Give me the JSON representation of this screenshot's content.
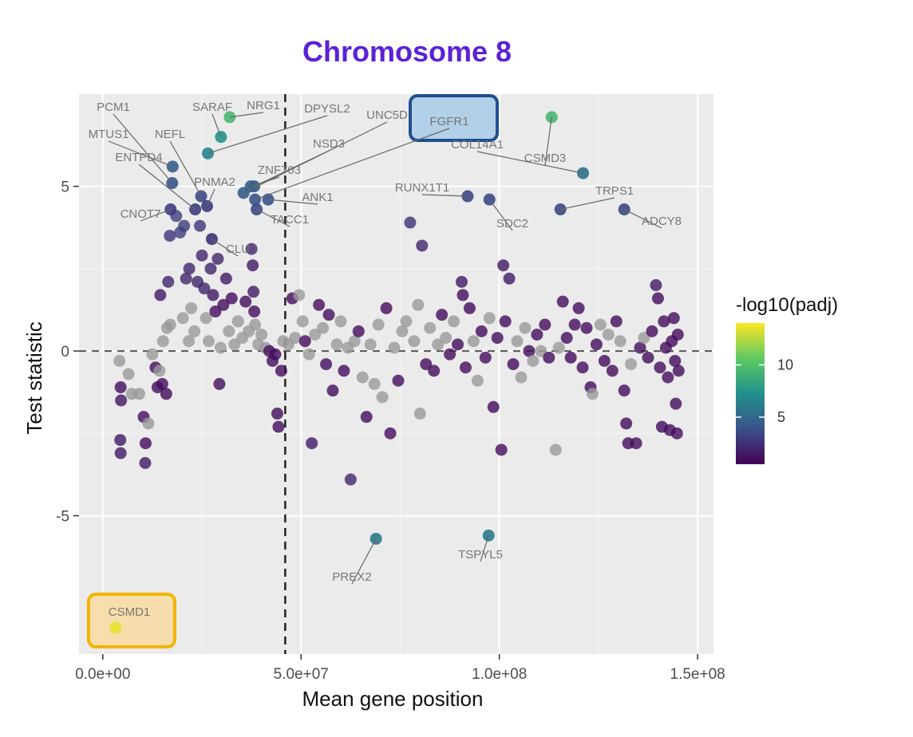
{
  "chart_data": {
    "type": "scatter",
    "title": "Chromosome 8",
    "title_color": "#5b21d6",
    "xlabel": "Mean gene position",
    "ylabel": "Test statistic",
    "xlim": [
      -6000000,
      154000000
    ],
    "ylim": [
      -9.2,
      7.8
    ],
    "x_ticks": [
      0,
      50000000,
      100000000,
      150000000
    ],
    "x_tick_labels": [
      "0.0e+00",
      "5.0e+07",
      "1.0e+08",
      "1.5e+08"
    ],
    "y_ticks": [
      -5,
      0,
      5
    ],
    "y_tick_labels": [
      "-5",
      "0",
      "5"
    ],
    "panel_background": "#ebebeb",
    "grid": true,
    "reference_lines": {
      "y_dashed": 0,
      "x_dashed": 46000000
    },
    "legend": {
      "title": "-log10(padj)",
      "placement": "right",
      "ticks": [
        5,
        10
      ],
      "tick_labels": [
        "5",
        "10"
      ],
      "range": [
        0.5,
        14
      ],
      "colors": [
        "#440154",
        "#3b528b",
        "#21918c",
        "#5ec962",
        "#fde725"
      ]
    },
    "nonsignificant_color": "#9a9a9a",
    "labeled_genes": [
      {
        "gene": "PCM1",
        "x": 17500000,
        "y": 5.1,
        "padj": 4.0
      },
      {
        "gene": "MTUS1",
        "x": 17600000,
        "y": 5.6,
        "padj": 4.5
      },
      {
        "gene": "NEFL",
        "x": 24800000,
        "y": 4.7,
        "padj": 3.5
      },
      {
        "gene": "ENTPD4",
        "x": 23300000,
        "y": 4.3,
        "padj": 3.0
      },
      {
        "gene": "CNOT7",
        "x": 17100000,
        "y": 4.3,
        "padj": 3.0
      },
      {
        "gene": "PNMA2",
        "x": 26300000,
        "y": 4.4,
        "padj": 3.0
      },
      {
        "gene": "CLU",
        "x": 27500000,
        "y": 3.4,
        "padj": 2.5
      },
      {
        "gene": "SARAF",
        "x": 29800000,
        "y": 6.5,
        "padj": 7.5
      },
      {
        "gene": "NRG1",
        "x": 32000000,
        "y": 7.1,
        "padj": 9.5
      },
      {
        "gene": "DPYSL2",
        "x": 26500000,
        "y": 6.0,
        "padj": 6.5
      },
      {
        "gene": "UNC5D",
        "x": 35500000,
        "y": 4.8,
        "padj": 4.5
      },
      {
        "gene": "NSD3",
        "x": 38200000,
        "y": 5.0,
        "padj": 4.5
      },
      {
        "gene": "ZNF703",
        "x": 37300000,
        "y": 5.0,
        "padj": 4.5
      },
      {
        "gene": "FGFR1",
        "x": 38400000,
        "y": 4.6,
        "padj": 4.0
      },
      {
        "gene": "ANK1",
        "x": 41700000,
        "y": 4.6,
        "padj": 4.0
      },
      {
        "gene": "TACC1",
        "x": 38800000,
        "y": 4.3,
        "padj": 3.5
      },
      {
        "gene": "COL14A1",
        "x": 121100000,
        "y": 5.4,
        "padj": 5.5
      },
      {
        "gene": "CSMD3",
        "x": 113200000,
        "y": 7.1,
        "padj": 9.5
      },
      {
        "gene": "RUNX1T1",
        "x": 92000000,
        "y": 4.7,
        "padj": 3.5
      },
      {
        "gene": "SDC2",
        "x": 97500000,
        "y": 4.6,
        "padj": 3.5
      },
      {
        "gene": "TRPS1",
        "x": 115400000,
        "y": 4.3,
        "padj": 3.5
      },
      {
        "gene": "ADCY8",
        "x": 131500000,
        "y": 4.3,
        "padj": 3.5
      },
      {
        "gene": "PREX2",
        "x": 68900000,
        "y": -5.7,
        "padj": 6.0
      },
      {
        "gene": "TSPYL5",
        "x": 97300000,
        "y": -5.6,
        "padj": 6.0
      },
      {
        "gene": "CSMD1",
        "x": 3200000,
        "y": -8.4,
        "padj": 13.5
      }
    ],
    "points": [
      {
        "x": 4200000,
        "y": -0.3,
        "padj": 0
      },
      {
        "x": 4500000,
        "y": -1.1,
        "padj": 1
      },
      {
        "x": 4600000,
        "y": -1.5,
        "padj": 1.2
      },
      {
        "x": 4400000,
        "y": -2.7,
        "padj": 1.5
      },
      {
        "x": 4500000,
        "y": -3.1,
        "padj": 1.5
      },
      {
        "x": 6500000,
        "y": -0.7,
        "padj": 0
      },
      {
        "x": 7300000,
        "y": -1.3,
        "padj": 0
      },
      {
        "x": 9200000,
        "y": -1.3,
        "padj": 0
      },
      {
        "x": 10300000,
        "y": -2.0,
        "padj": 1
      },
      {
        "x": 10800000,
        "y": -2.8,
        "padj": 1
      },
      {
        "x": 10700000,
        "y": -3.4,
        "padj": 1.5
      },
      {
        "x": 11500000,
        "y": -2.2,
        "padj": 0
      },
      {
        "x": 12500000,
        "y": -0.1,
        "padj": 0
      },
      {
        "x": 13300000,
        "y": -0.5,
        "padj": 1
      },
      {
        "x": 13800000,
        "y": -1.1,
        "padj": 1
      },
      {
        "x": 14300000,
        "y": -0.6,
        "padj": 0
      },
      {
        "x": 15000000,
        "y": -1.0,
        "padj": 1
      },
      {
        "x": 16000000,
        "y": -1.3,
        "padj": 1
      },
      {
        "x": 14500000,
        "y": 1.7,
        "padj": 1.5
      },
      {
        "x": 15200000,
        "y": 0.3,
        "padj": 0
      },
      {
        "x": 16200000,
        "y": 0.7,
        "padj": 0
      },
      {
        "x": 17000000,
        "y": 0.8,
        "padj": 0
      },
      {
        "x": 16500000,
        "y": 2.1,
        "padj": 2
      },
      {
        "x": 16900000,
        "y": 3.5,
        "padj": 2.5
      },
      {
        "x": 18500000,
        "y": 4.1,
        "padj": 3
      },
      {
        "x": 19500000,
        "y": 3.6,
        "padj": 3
      },
      {
        "x": 20500000,
        "y": 3.8,
        "padj": 3
      },
      {
        "x": 21800000,
        "y": 2.5,
        "padj": 2
      },
      {
        "x": 21000000,
        "y": 2.2,
        "padj": 2
      },
      {
        "x": 20200000,
        "y": 1.0,
        "padj": 0
      },
      {
        "x": 21700000,
        "y": 0.3,
        "padj": 0
      },
      {
        "x": 22300000,
        "y": 1.3,
        "padj": 0
      },
      {
        "x": 23100000,
        "y": 0.6,
        "padj": 0
      },
      {
        "x": 23900000,
        "y": 2.1,
        "padj": 2
      },
      {
        "x": 24500000,
        "y": 3.8,
        "padj": 2.5
      },
      {
        "x": 25000000,
        "y": 2.9,
        "padj": 2
      },
      {
        "x": 25600000,
        "y": 1.9,
        "padj": 2
      },
      {
        "x": 26000000,
        "y": 1.0,
        "padj": 0
      },
      {
        "x": 26700000,
        "y": 0.3,
        "padj": 0
      },
      {
        "x": 27200000,
        "y": 2.5,
        "padj": 2
      },
      {
        "x": 27800000,
        "y": 1.7,
        "padj": 1.5
      },
      {
        "x": 28400000,
        "y": 1.2,
        "padj": 1
      },
      {
        "x": 29000000,
        "y": 2.8,
        "padj": 2
      },
      {
        "x": 29400000,
        "y": -1.0,
        "padj": 1
      },
      {
        "x": 29700000,
        "y": 0.1,
        "padj": 0
      },
      {
        "x": 30400000,
        "y": 1.4,
        "padj": 1
      },
      {
        "x": 31100000,
        "y": 2.2,
        "padj": 1.5
      },
      {
        "x": 31800000,
        "y": 0.6,
        "padj": 0
      },
      {
        "x": 32500000,
        "y": 1.6,
        "padj": 1
      },
      {
        "x": 33200000,
        "y": 0.2,
        "padj": 0
      },
      {
        "x": 34100000,
        "y": 0.9,
        "padj": 0
      },
      {
        "x": 35200000,
        "y": 0.4,
        "padj": 0
      },
      {
        "x": 36000000,
        "y": 1.5,
        "padj": 1
      },
      {
        "x": 36800000,
        "y": 0.6,
        "padj": 0
      },
      {
        "x": 37500000,
        "y": 3.1,
        "padj": 2
      },
      {
        "x": 37800000,
        "y": 2.6,
        "padj": 1.5
      },
      {
        "x": 38000000,
        "y": 1.8,
        "padj": 1.5
      },
      {
        "x": 38200000,
        "y": 1.2,
        "padj": 1
      },
      {
        "x": 38400000,
        "y": 0.8,
        "padj": 0
      },
      {
        "x": 39200000,
        "y": 0.2,
        "padj": 0
      },
      {
        "x": 40000000,
        "y": 0.5,
        "padj": 0
      },
      {
        "x": 41000000,
        "y": 0.1,
        "padj": 0
      },
      {
        "x": 42000000,
        "y": 0.0,
        "padj": 1
      },
      {
        "x": 42800000,
        "y": -0.3,
        "padj": 1
      },
      {
        "x": 43500000,
        "y": -0.1,
        "padj": 1
      },
      {
        "x": 44000000,
        "y": -1.9,
        "padj": 1
      },
      {
        "x": 44300000,
        "y": -2.3,
        "padj": 1
      },
      {
        "x": 45000000,
        "y": -0.6,
        "padj": 1
      },
      {
        "x": 45500000,
        "y": 0.3,
        "padj": 0
      },
      {
        "x": 46800000,
        "y": 0.2,
        "padj": 0
      },
      {
        "x": 47800000,
        "y": 1.6,
        "padj": 1
      },
      {
        "x": 48500000,
        "y": 0.4,
        "padj": 0
      },
      {
        "x": 49500000,
        "y": 1.7,
        "padj": 0
      },
      {
        "x": 50400000,
        "y": 0.9,
        "padj": 0
      },
      {
        "x": 51000000,
        "y": 0.3,
        "padj": 1
      },
      {
        "x": 52000000,
        "y": -0.1,
        "padj": 0
      },
      {
        "x": 52700000,
        "y": -2.8,
        "padj": 1.5
      },
      {
        "x": 53500000,
        "y": 0.5,
        "padj": 0
      },
      {
        "x": 54500000,
        "y": 1.4,
        "padj": 1
      },
      {
        "x": 55500000,
        "y": 0.7,
        "padj": 0
      },
      {
        "x": 56300000,
        "y": -0.4,
        "padj": 1
      },
      {
        "x": 57000000,
        "y": 1.1,
        "padj": 1
      },
      {
        "x": 58000000,
        "y": -1.2,
        "padj": 1
      },
      {
        "x": 59000000,
        "y": 0.2,
        "padj": 0
      },
      {
        "x": 60000000,
        "y": 0.9,
        "padj": 0
      },
      {
        "x": 60800000,
        "y": -0.6,
        "padj": 1
      },
      {
        "x": 61800000,
        "y": 0.1,
        "padj": 0
      },
      {
        "x": 62500000,
        "y": -3.9,
        "padj": 2
      },
      {
        "x": 63500000,
        "y": 0.3,
        "padj": 0
      },
      {
        "x": 64500000,
        "y": 0.6,
        "padj": 1
      },
      {
        "x": 65500000,
        "y": -0.8,
        "padj": 0
      },
      {
        "x": 66500000,
        "y": -2.0,
        "padj": 1
      },
      {
        "x": 67500000,
        "y": 0.2,
        "padj": 0
      },
      {
        "x": 68500000,
        "y": -1.0,
        "padj": 0
      },
      {
        "x": 69500000,
        "y": 0.8,
        "padj": 0
      },
      {
        "x": 70500000,
        "y": -1.4,
        "padj": 0
      },
      {
        "x": 71500000,
        "y": 1.3,
        "padj": 1
      },
      {
        "x": 72500000,
        "y": -2.5,
        "padj": 1
      },
      {
        "x": 73500000,
        "y": 0.1,
        "padj": 0
      },
      {
        "x": 74500000,
        "y": -0.9,
        "padj": 1
      },
      {
        "x": 75500000,
        "y": 0.6,
        "padj": 0
      },
      {
        "x": 76500000,
        "y": 0.9,
        "padj": 0
      },
      {
        "x": 77500000,
        "y": 3.9,
        "padj": 2.5
      },
      {
        "x": 78500000,
        "y": 0.3,
        "padj": 0
      },
      {
        "x": 79500000,
        "y": 1.4,
        "padj": 0
      },
      {
        "x": 80000000,
        "y": -1.9,
        "padj": 0
      },
      {
        "x": 80500000,
        "y": 3.2,
        "padj": 2
      },
      {
        "x": 81500000,
        "y": -0.4,
        "padj": 1
      },
      {
        "x": 82500000,
        "y": 0.7,
        "padj": 0
      },
      {
        "x": 83500000,
        "y": -0.6,
        "padj": 1
      },
      {
        "x": 84500000,
        "y": 0.2,
        "padj": 0
      },
      {
        "x": 85500000,
        "y": 1.1,
        "padj": 1
      },
      {
        "x": 86500000,
        "y": 0.4,
        "padj": 0
      },
      {
        "x": 87500000,
        "y": -0.1,
        "padj": 1
      },
      {
        "x": 88500000,
        "y": 0.9,
        "padj": 0
      },
      {
        "x": 89500000,
        "y": 0.2,
        "padj": 1
      },
      {
        "x": 90500000,
        "y": 2.1,
        "padj": 1.5
      },
      {
        "x": 90800000,
        "y": 1.7,
        "padj": 1
      },
      {
        "x": 91500000,
        "y": -0.5,
        "padj": 1
      },
      {
        "x": 92500000,
        "y": 1.3,
        "padj": 1
      },
      {
        "x": 93500000,
        "y": 0.3,
        "padj": 0
      },
      {
        "x": 94500000,
        "y": -0.9,
        "padj": 0
      },
      {
        "x": 95500000,
        "y": 0.6,
        "padj": 1
      },
      {
        "x": 96500000,
        "y": -0.2,
        "padj": 1
      },
      {
        "x": 97500000,
        "y": 1.0,
        "padj": 0
      },
      {
        "x": 98500000,
        "y": -1.7,
        "padj": 1
      },
      {
        "x": 99500000,
        "y": 0.4,
        "padj": 1
      },
      {
        "x": 100500000,
        "y": -3.0,
        "padj": 1
      },
      {
        "x": 101000000,
        "y": 2.6,
        "padj": 1.5
      },
      {
        "x": 101500000,
        "y": 0.9,
        "padj": 1
      },
      {
        "x": 102500000,
        "y": 2.2,
        "padj": 1.5
      },
      {
        "x": 103500000,
        "y": -0.4,
        "padj": 1
      },
      {
        "x": 104500000,
        "y": 0.3,
        "padj": 0
      },
      {
        "x": 105500000,
        "y": -0.8,
        "padj": 0
      },
      {
        "x": 106500000,
        "y": 0.7,
        "padj": 0
      },
      {
        "x": 107500000,
        "y": 0.0,
        "padj": 1
      },
      {
        "x": 108500000,
        "y": -0.3,
        "padj": 0
      },
      {
        "x": 109500000,
        "y": 0.5,
        "padj": 1
      },
      {
        "x": 110500000,
        "y": 0.0,
        "padj": 0
      },
      {
        "x": 111500000,
        "y": 0.8,
        "padj": 1
      },
      {
        "x": 112500000,
        "y": -0.2,
        "padj": 1
      },
      {
        "x": 114200000,
        "y": -3.0,
        "padj": 0
      },
      {
        "x": 115000000,
        "y": 0.1,
        "padj": 0
      },
      {
        "x": 116000000,
        "y": 1.5,
        "padj": 1
      },
      {
        "x": 117000000,
        "y": 0.4,
        "padj": 1
      },
      {
        "x": 118000000,
        "y": -0.2,
        "padj": 1
      },
      {
        "x": 119000000,
        "y": 0.8,
        "padj": 1
      },
      {
        "x": 120000000,
        "y": 1.3,
        "padj": 1
      },
      {
        "x": 121000000,
        "y": -0.5,
        "padj": 1
      },
      {
        "x": 122000000,
        "y": 0.7,
        "padj": 1
      },
      {
        "x": 123000000,
        "y": -1.1,
        "padj": 1
      },
      {
        "x": 123500000,
        "y": -1.3,
        "padj": 0
      },
      {
        "x": 124500000,
        "y": 0.2,
        "padj": 1
      },
      {
        "x": 125500000,
        "y": 0.8,
        "padj": 0
      },
      {
        "x": 126500000,
        "y": -0.3,
        "padj": 1
      },
      {
        "x": 127500000,
        "y": 0.5,
        "padj": 0
      },
      {
        "x": 128500000,
        "y": -0.6,
        "padj": 1
      },
      {
        "x": 129500000,
        "y": 0.9,
        "padj": 1
      },
      {
        "x": 130500000,
        "y": 0.3,
        "padj": 0
      },
      {
        "x": 131500000,
        "y": -1.2,
        "padj": 1
      },
      {
        "x": 132000000,
        "y": -2.2,
        "padj": 1
      },
      {
        "x": 132500000,
        "y": -2.8,
        "padj": 1
      },
      {
        "x": 133200000,
        "y": -0.4,
        "padj": 0
      },
      {
        "x": 134500000,
        "y": -2.8,
        "padj": 1
      },
      {
        "x": 135500000,
        "y": 0.1,
        "padj": 1
      },
      {
        "x": 136500000,
        "y": 0.4,
        "padj": 0
      },
      {
        "x": 137500000,
        "y": -0.2,
        "padj": 1
      },
      {
        "x": 138500000,
        "y": 0.6,
        "padj": 1
      },
      {
        "x": 139500000,
        "y": 2.0,
        "padj": 1.5
      },
      {
        "x": 140000000,
        "y": 1.6,
        "padj": 1
      },
      {
        "x": 140500000,
        "y": -0.5,
        "padj": 1
      },
      {
        "x": 141000000,
        "y": -2.3,
        "padj": 1
      },
      {
        "x": 141500000,
        "y": 0.9,
        "padj": 1
      },
      {
        "x": 142000000,
        "y": 0.1,
        "padj": 1
      },
      {
        "x": 142500000,
        "y": -0.8,
        "padj": 1
      },
      {
        "x": 143000000,
        "y": -2.4,
        "padj": 1
      },
      {
        "x": 143500000,
        "y": 0.3,
        "padj": 1
      },
      {
        "x": 144000000,
        "y": 1.0,
        "padj": 1
      },
      {
        "x": 144300000,
        "y": -0.3,
        "padj": 1
      },
      {
        "x": 144500000,
        "y": -1.6,
        "padj": 1
      },
      {
        "x": 144800000,
        "y": -2.5,
        "padj": 1
      },
      {
        "x": 145000000,
        "y": 0.5,
        "padj": 1
      },
      {
        "x": 145200000,
        "y": -0.6,
        "padj": 1
      }
    ]
  },
  "highlight_boxes": [
    {
      "gene": "FGFR1",
      "fill": "#a8cbe6",
      "border": "#1f4f8f"
    },
    {
      "gene": "CSMD1",
      "fill": "#f8dba0",
      "border": "#f2b400"
    }
  ]
}
